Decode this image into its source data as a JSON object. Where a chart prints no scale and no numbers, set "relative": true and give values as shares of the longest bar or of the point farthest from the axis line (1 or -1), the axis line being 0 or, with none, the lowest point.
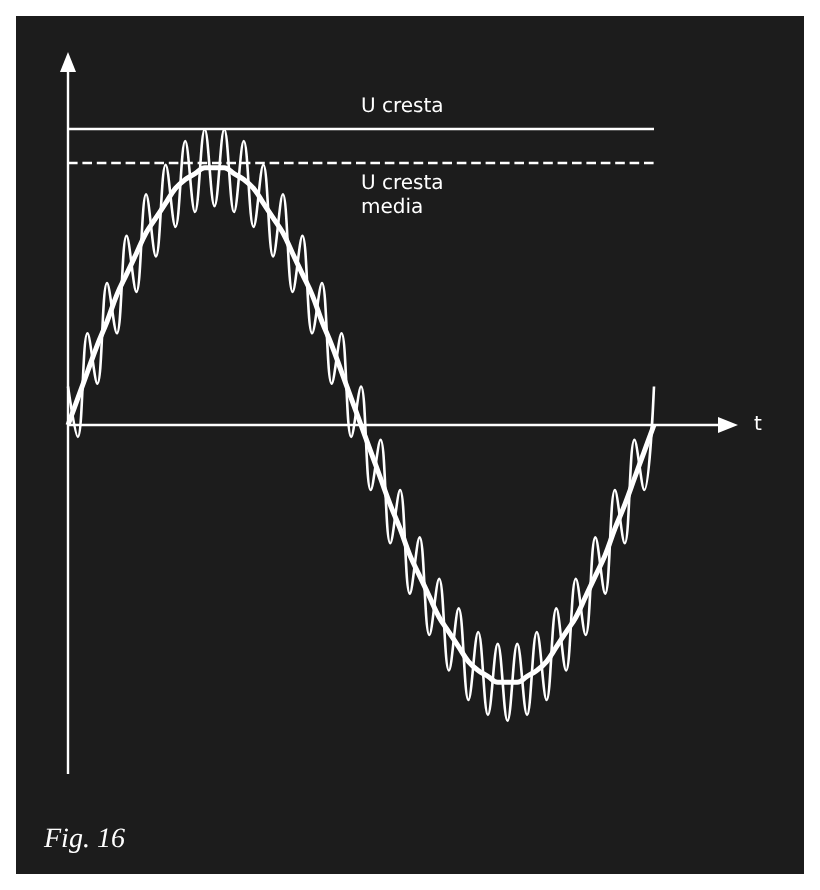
{
  "chart_data": {
    "type": "line",
    "relative": true,
    "xlabel": "t",
    "annotations": [
      "Fig. 16"
    ],
    "line_style": "solid",
    "grid": false,
    "categories": [
      null,
      null,
      null,
      null,
      null,
      null,
      null,
      null,
      null,
      null,
      null,
      null,
      null,
      null,
      null,
      null,
      null,
      null,
      null,
      null,
      null,
      null,
      null,
      null,
      null,
      null,
      null,
      null,
      null,
      null,
      null,
      null,
      null,
      null,
      null,
      null,
      null,
      null,
      null,
      null,
      null,
      null,
      null,
      null,
      null,
      null,
      null,
      null,
      null,
      null,
      null,
      null,
      null,
      null,
      null,
      null,
      null,
      null,
      null,
      null,
      null
    ],
    "series": [
      {
        "color": "#ffffff",
        "values": [
          0.13,
          -0.04,
          0.31,
          0.14,
          0.48,
          0.31,
          0.64,
          0.45,
          0.78,
          0.57,
          0.88,
          0.67,
          0.96,
          0.72,
          1.0,
          0.74,
          1.0,
          0.72,
          0.96,
          0.67,
          0.88,
          0.57,
          0.78,
          0.45,
          0.64,
          0.31,
          0.48,
          0.14,
          0.31,
          -0.04,
          0.13,
          -0.22,
          -0.05,
          -0.4,
          -0.22,
          -0.57,
          -0.38,
          -0.71,
          -0.52,
          -0.83,
          -0.62,
          -0.93,
          -0.7,
          -0.98,
          -0.74,
          -1.0,
          -0.74,
          -0.98,
          -0.7,
          -0.93,
          -0.62,
          -0.83,
          -0.52,
          -0.71,
          -0.38,
          -0.57,
          -0.22,
          -0.4,
          -0.05,
          -0.22,
          0.13
        ]
      },
      {
        "color": "#ffffff",
        "values": [
          0,
          0.09,
          0.18,
          0.27,
          0.35,
          0.44,
          0.51,
          0.58,
          0.65,
          0.7,
          0.75,
          0.8,
          0.83,
          0.85,
          0.87,
          0.87,
          0.87,
          0.85,
          0.83,
          0.8,
          0.75,
          0.7,
          0.65,
          0.58,
          0.51,
          0.44,
          0.35,
          0.27,
          0.18,
          0.09,
          0,
          -0.09,
          -0.18,
          -0.27,
          -0.35,
          -0.44,
          -0.51,
          -0.58,
          -0.65,
          -0.7,
          -0.75,
          -0.8,
          -0.83,
          -0.85,
          -0.87,
          -0.87,
          -0.87,
          -0.85,
          -0.83,
          -0.8,
          -0.75,
          -0.7,
          -0.65,
          -0.58,
          -0.51,
          -0.44,
          -0.35,
          -0.27,
          -0.18,
          -0.09,
          0
        ]
      }
    ],
    "ref_lines": [
      {
        "axis": "y",
        "value": 1.0,
        "label": "U cresta",
        "color": "#ffffff",
        "line_style": "solid"
      },
      {
        "axis": "y",
        "value": 0.89,
        "label": "U cresta\nmedia",
        "color": "#ffffff",
        "line_style": "dashed"
      }
    ]
  }
}
